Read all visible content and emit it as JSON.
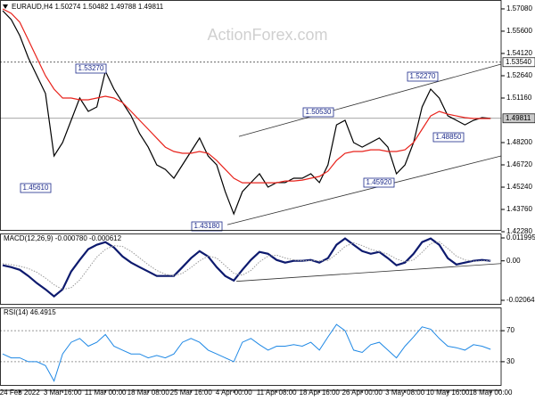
{
  "chart_data": [
    {
      "type": "line",
      "title": "EURAUD,H4  1.50274 1.50482 1.49788 1.49811",
      "watermark": "ActionForex.com",
      "ylim": [
        1.424,
        1.5767
      ],
      "yticks": [
        {
          "value": 1.5708,
          "label": "1.57080"
        },
        {
          "value": 1.556,
          "label": "1.55600"
        },
        {
          "value": 1.5412,
          "label": "1.54120"
        },
        {
          "value": 1.5264,
          "label": "1.52640"
        },
        {
          "value": 1.5116,
          "label": "1.51160"
        },
        {
          "value": 1.482,
          "label": "1.48200"
        },
        {
          "value": 1.4672,
          "label": "1.46720"
        },
        {
          "value": 1.4524,
          "label": "1.45240"
        },
        {
          "value": 1.4376,
          "label": "1.43760"
        },
        {
          "value": 1.4228,
          "label": "1.42280"
        }
      ],
      "series": [
        {
          "color": "#000000",
          "values": [
            1.5696,
            1.5637,
            1.553,
            1.5382,
            1.5264,
            1.5146,
            1.4731,
            1.482,
            1.4968,
            1.5116,
            1.5027,
            1.5057,
            1.5294,
            1.5175,
            1.5086,
            1.4998,
            1.4879,
            1.479,
            1.4672,
            1.4642,
            1.4583,
            1.4672,
            1.4761,
            1.485,
            1.4731,
            1.4672,
            1.4494,
            1.4346,
            1.4494,
            1.4554,
            1.4613,
            1.4524,
            1.4554,
            1.4554,
            1.4583,
            1.4583,
            1.4613,
            1.4554,
            1.4672,
            1.4938,
            1.4968,
            1.482,
            1.479,
            1.482,
            1.485,
            1.479,
            1.4613,
            1.4672,
            1.482,
            1.5057,
            1.5175,
            1.5116,
            1.4998,
            1.4968,
            1.4938,
            1.4968,
            1.4986,
            1.4981
          ]
        },
        {
          "color": "#e8231c",
          "values": [
            1.5708,
            1.5678,
            1.5619,
            1.5501,
            1.5382,
            1.5264,
            1.5175,
            1.5116,
            1.5116,
            1.5104,
            1.5104,
            1.5116,
            1.5128,
            1.5116,
            1.5086,
            1.5027,
            1.4968,
            1.4909,
            1.4849,
            1.479,
            1.4761,
            1.4749,
            1.4749,
            1.4761,
            1.4749,
            1.4701,
            1.4642,
            1.4583,
            1.4553,
            1.4553,
            1.4553,
            1.4553,
            1.4553,
            1.4565,
            1.4565,
            1.4571,
            1.4583,
            1.4595,
            1.463,
            1.4701,
            1.4749,
            1.4761,
            1.4761,
            1.4772,
            1.4772,
            1.4761,
            1.4761,
            1.4772,
            1.482,
            1.4909,
            1.4997,
            1.5027,
            1.5009,
            1.4997,
            1.4986,
            1.498,
            1.498,
            1.498
          ]
        }
      ],
      "hlines": [
        {
          "value": 1.5354,
          "label": "1.53540"
        },
        1.49811
      ],
      "trendlines": [
        {
          "x": [
            27.6,
            59.06
          ],
          "values": [
            1.4861,
            1.5341
          ]
        },
        {
          "x": [
            26.25,
            58.5
          ],
          "values": [
            1.4275,
            1.4731
          ]
        }
      ],
      "annotations": [
        "1.53270",
        "1.45610",
        "1.43180",
        "1.50530",
        "1.45920",
        "1.52270",
        "1.48850"
      ]
    },
    {
      "type": "line",
      "title": "MACD(12,26,9) -0.000780 -0.000612",
      "ylim": [
        -0.02251,
        0.01433
      ],
      "yticks": [
        0.011995,
        {
          "value": 0,
          "label": "0.00"
        },
        -0.020649
      ],
      "series": [
        {
          "color": "#0d1a6e",
          "width": 2.2,
          "values": [
            -0.0023,
            -0.0033,
            -0.0047,
            -0.0079,
            -0.0117,
            -0.0149,
            -0.0186,
            -0.0149,
            -0.0056,
            0.0005,
            0.0061,
            0.0084,
            0.0098,
            0.007,
            0.0023,
            -0.0009,
            -0.0033,
            -0.0056,
            -0.0079,
            -0.0079,
            -0.0079,
            -0.0033,
            0.0014,
            0.0051,
            0.0023,
            -0.0033,
            -0.0079,
            -0.0103,
            -0.0047,
            0.0005,
            0.0047,
            0.0037,
            0.0005,
            -0.0009,
            0.0,
            0.0,
            0.0005,
            -0.0009,
            0.0014,
            0.0084,
            0.0117,
            0.0084,
            0.0051,
            0.0037,
            0.0047,
            0.0014,
            -0.0023,
            -0.0009,
            0.0037,
            0.0098,
            0.0117,
            0.0084,
            0.0014,
            -0.0019,
            -0.0009,
            0.0,
            0.0005,
            0.0
          ]
        },
        {
          "color": "#9a9a9a",
          "width": 1,
          "dash": true,
          "values": [
            -0.0015,
            -0.002,
            -0.0028,
            -0.004,
            -0.006,
            -0.009,
            -0.0125,
            -0.015,
            -0.014,
            -0.01,
            -0.004,
            0.002,
            0.006,
            0.008,
            0.0075,
            0.005,
            0.0015,
            -0.002,
            -0.005,
            -0.007,
            -0.0078,
            -0.0065,
            -0.0035,
            0.0,
            0.0025,
            0.0015,
            -0.0025,
            -0.0065,
            -0.0075,
            -0.005,
            -0.0005,
            0.0025,
            0.003,
            0.0015,
            0.0005,
            0.0,
            0.0002,
            0.0,
            0.0002,
            0.0035,
            0.0075,
            0.0095,
            0.008,
            0.006,
            0.0048,
            0.0035,
            0.001,
            -0.0005,
            0.0005,
            0.0045,
            0.009,
            0.01,
            0.0065,
            0.0025,
            0.0005,
            -0.0002,
            0.0,
            0.0002
          ]
        }
      ],
      "trendlines": [
        {
          "x": [
            27.3,
            58.5
          ],
          "values": [
            -0.0107,
            -0.0014
          ]
        }
      ]
    },
    {
      "type": "line",
      "title": "RSI(14) 46.4915",
      "ylim": [
        0,
        100
      ],
      "yticks": [
        70,
        30
      ],
      "categories": [
        null,
        null,
        "24 Feb 2022",
        null,
        null,
        null,
        null,
        "3 Mar 16:00",
        null,
        null,
        null,
        null,
        "11 Mar 00:00",
        null,
        null,
        null,
        null,
        "18 Mar 08:00",
        null,
        null,
        null,
        null,
        "25 Mar 16:00",
        null,
        null,
        null,
        null,
        "4 Apr 00:00",
        null,
        null,
        null,
        null,
        "11 Apr 08:00",
        null,
        null,
        null,
        null,
        "18 Apr 16:00",
        null,
        null,
        null,
        null,
        "26 Apr 00:00",
        null,
        null,
        null,
        null,
        "3 May 08:00",
        null,
        null,
        null,
        null,
        "10 May 16:00",
        null,
        null,
        null,
        null,
        "18 May 00:00"
      ],
      "series": [
        {
          "color": "#1e88e5",
          "width": 1,
          "values": [
            40,
            35,
            35,
            30,
            30,
            25,
            5,
            40,
            55,
            60,
            50,
            55,
            65,
            50,
            45,
            40,
            40,
            35,
            38,
            35,
            40,
            55,
            60,
            55,
            45,
            40,
            35,
            30,
            55,
            60,
            52,
            45,
            50,
            50,
            52,
            50,
            55,
            45,
            62,
            78,
            70,
            45,
            42,
            52,
            55,
            45,
            35,
            50,
            62,
            75,
            72,
            60,
            50,
            48,
            45,
            52,
            50,
            46
          ]
        }
      ]
    }
  ]
}
